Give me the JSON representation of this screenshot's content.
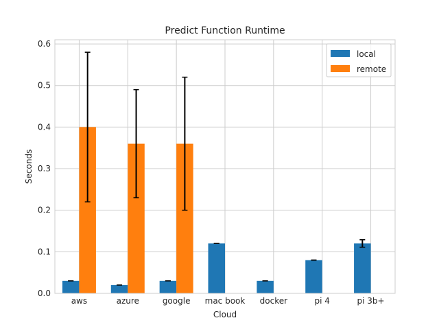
{
  "chart_data": {
    "type": "bar",
    "title": "Predict Function Runtime",
    "xlabel": "Cloud",
    "ylabel": "Seconds",
    "categories": [
      "aws",
      "azure",
      "google",
      "mac book",
      "docker",
      "pi 4",
      "pi 3b+"
    ],
    "ylim": [
      0,
      0.61
    ],
    "yticks": [
      "0.0",
      "0.1",
      "0.2",
      "0.3",
      "0.4",
      "0.5",
      "0.6"
    ],
    "grid": true,
    "legend_position": "top-right",
    "series": [
      {
        "name": "local",
        "color": "#1f77b4",
        "values": [
          0.03,
          0.02,
          0.03,
          0.12,
          0.03,
          0.08,
          0.12
        ],
        "errors": [
          0.0,
          0.0,
          0.0,
          0.0,
          0.0,
          0.0,
          0.009
        ]
      },
      {
        "name": "remote",
        "color": "#ff7f0e",
        "values": [
          0.4,
          0.36,
          0.36,
          null,
          null,
          null,
          null
        ],
        "errors": [
          0.18,
          0.13,
          0.16,
          null,
          null,
          null,
          null
        ]
      }
    ]
  }
}
